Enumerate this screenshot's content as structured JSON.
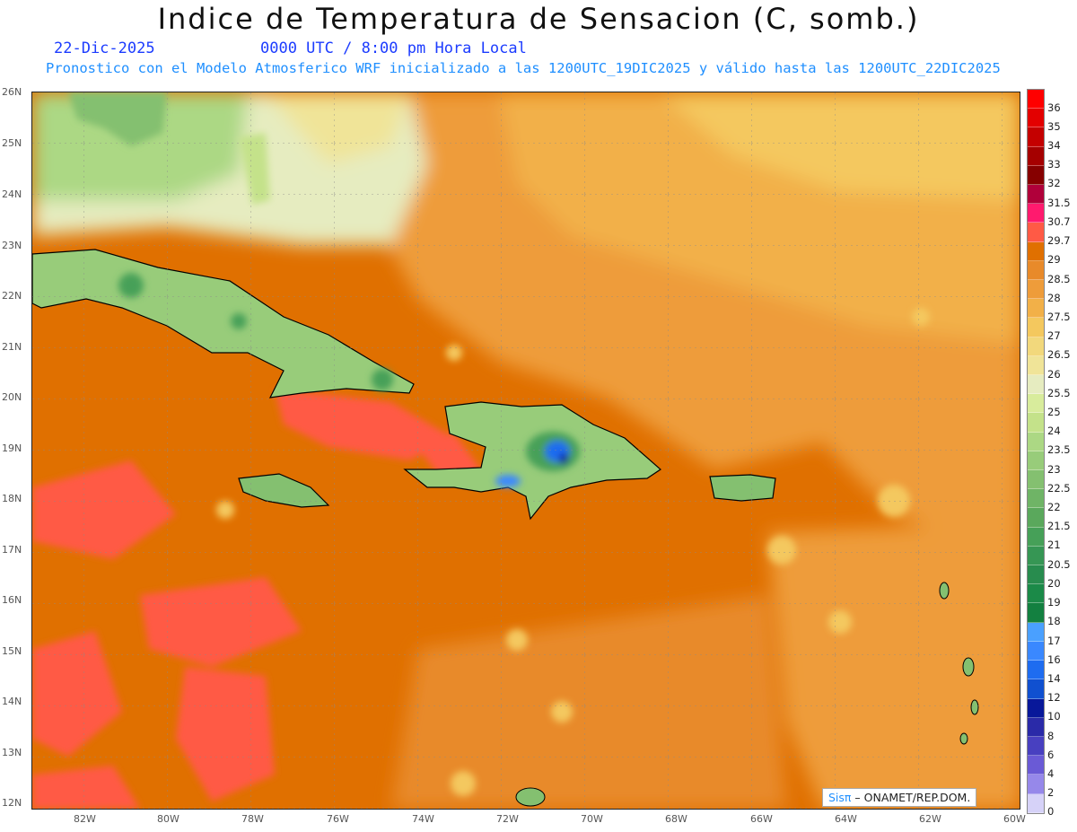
{
  "title": "Indice de Temperatura de Sensacion (C, somb.)",
  "date": "22-Dic-2025",
  "time": "0000 UTC / 8:00 pm Hora Local",
  "subtitle": "Pronostico con el Modelo Atmosferico WRF inicializado a las 1200UTC_19DIC2025 y válido hasta las  1200UTC_22DIC2025",
  "lat_labels": [
    "26N",
    "25N",
    "24N",
    "23N",
    "22N",
    "21N",
    "20N",
    "19N",
    "18N",
    "17N",
    "16N",
    "15N",
    "14N",
    "13N",
    "12N"
  ],
  "lon_labels": [
    "82W",
    "80W",
    "78W",
    "76W",
    "74W",
    "72W",
    "70W",
    "68W",
    "66W",
    "64W",
    "62W",
    "60W"
  ],
  "colorbar": {
    "labels": [
      "36",
      "35",
      "34",
      "33",
      "32",
      "31.5",
      "30.7",
      "29.7",
      "29",
      "28.5",
      "28",
      "27.5",
      "27",
      "26.5",
      "26",
      "25.5",
      "25",
      "24",
      "23.5",
      "23",
      "22.5",
      "22",
      "21.5",
      "21",
      "20.5",
      "20",
      "19",
      "18",
      "17",
      "16",
      "14",
      "12",
      "10",
      "8",
      "6",
      "4",
      "2",
      "0"
    ],
    "colors": [
      "#ff0000",
      "#e30000",
      "#c40000",
      "#a50000",
      "#860000",
      "#b0003a",
      "#ff1a6e",
      "#ff5a45",
      "#e07000",
      "#e88a2a",
      "#ee9c3a",
      "#f2b048",
      "#f4c85e",
      "#f2d87c",
      "#f0e498",
      "#e6ecc0",
      "#d8ec9c",
      "#c4e28a",
      "#acd884",
      "#98cc7a",
      "#84c070",
      "#6fb466",
      "#5aa85c",
      "#46a058",
      "#369654",
      "#288c4e",
      "#1b8a48",
      "#138040",
      "#4aa0ff",
      "#3a88ff",
      "#1e6cf0",
      "#1050d0",
      "#08189a",
      "#2a2aa8",
      "#4840c0",
      "#6a5ad6",
      "#9688ea",
      "#d6d2f8"
    ]
  },
  "credit": {
    "brand": "Sisπ",
    "text": " – ONAMET/REP.DOM."
  },
  "colors": {
    "ocean_main": "#e07000",
    "hot_patches": "#ff5a45",
    "atlantic": "#f2b048",
    "land_green": "#6fb466"
  }
}
